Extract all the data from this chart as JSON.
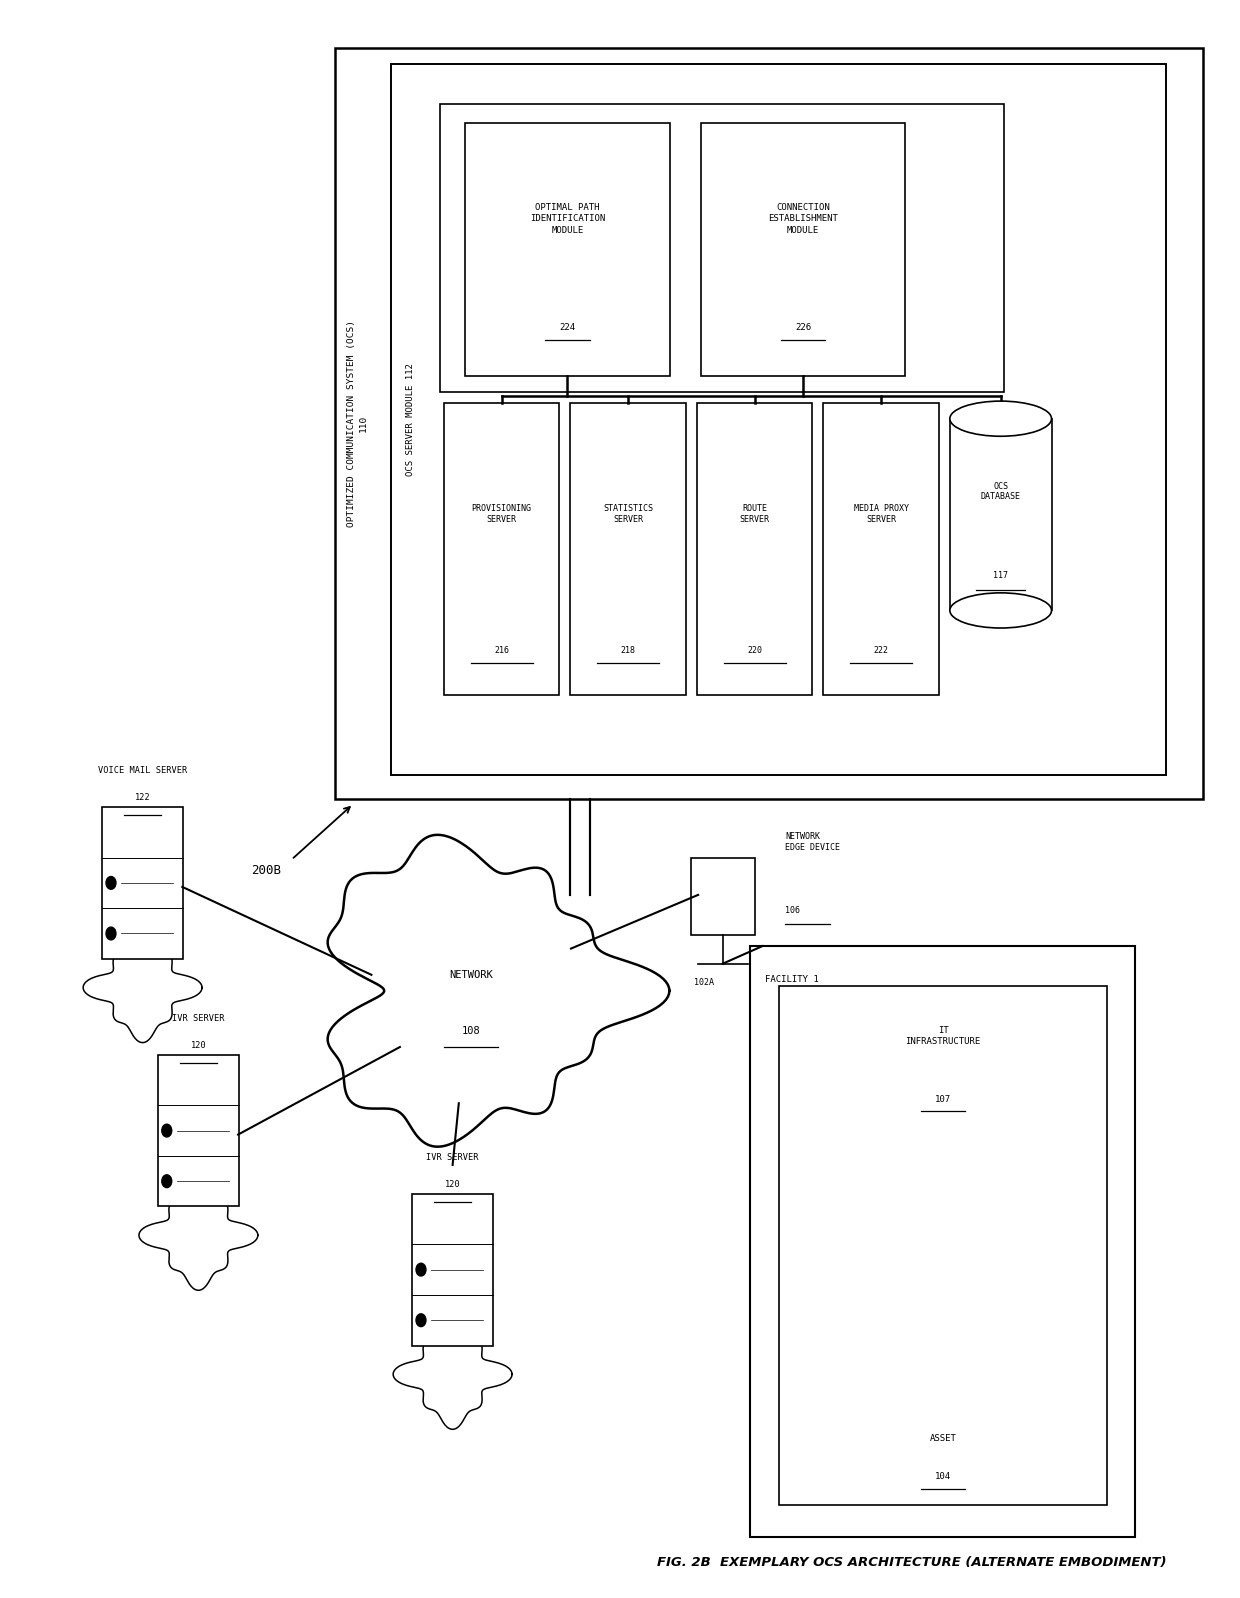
{
  "bg_color": "#ffffff",
  "line_color": "#000000",
  "text_color": "#000000",
  "fig_caption": "FIG. 2B",
  "fig_caption_right": "EXEMPLARY OCS ARCHITECTURE (ALTERNATE EMBODIMENT)",
  "ocs_outer_label": "OPTIMIZED COMMUNICATION SYSTEM (OCS)\n110",
  "ocs_inner_label": "OCS SERVER MODULE 112",
  "module1_label": "OPTIMAL PATH\nIDENTIFICATION\nMODULE",
  "module1_num": "224",
  "module2_label": "CONNECTION\nESTABLISHMENT\nMODULE",
  "module2_num": "226",
  "servers": [
    {
      "name": "PROVISIONING\nSERVER",
      "num": "216"
    },
    {
      "name": "STATISTICS\nSERVER",
      "num": "218"
    },
    {
      "name": "ROUTE\nSERVER",
      "num": "220"
    },
    {
      "name": "MEDIA PROXY\nSERVER",
      "num": "222"
    }
  ],
  "db_label": "OCS\nDATABASE",
  "db_num": "117",
  "network_label": "NETWORK",
  "network_num": "108",
  "ned_label": "NETWORK\nEDGE DEVICE",
  "ned_num": "106",
  "ned_sub": "102A",
  "facility_label": "FACILITY 1",
  "it_label": "IT\nINFRASTRUCTURE",
  "it_num": "107",
  "asset_label": "ASSET",
  "asset_num": "104",
  "vm_label": "VOICE MAIL SERVER",
  "vm_num": "122",
  "ivr1_label": "IVR SERVER",
  "ivr1_num": "120",
  "ivr2_label": "IVR SERVER",
  "ivr2_num": "120",
  "diagram_id": "200B"
}
